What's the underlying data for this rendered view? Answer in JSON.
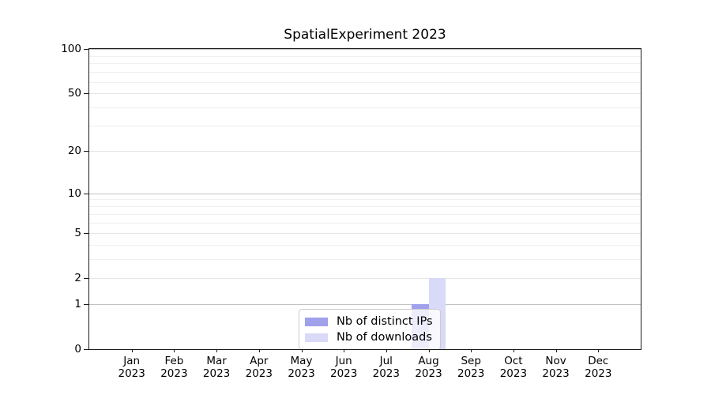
{
  "title": "SpatialExperiment 2023",
  "colors": {
    "distinct_ips_bar": "#a0a0eb",
    "downloads_bar": "#d9d9f8",
    "grid_major": "#c2c2c2",
    "grid_mid": "#e5e5e5",
    "grid_minor": "#f0f0f0",
    "axis": "#1a1a1a",
    "background": "#ffffff"
  },
  "legend": {
    "items": [
      {
        "label": "Nb of distinct IPs",
        "color": "#a0a0eb"
      },
      {
        "label": "Nb of downloads",
        "color": "#d9d9f8"
      }
    ]
  },
  "x_axis": {
    "months": [
      {
        "month": "Jan",
        "year": "2023"
      },
      {
        "month": "Feb",
        "year": "2023"
      },
      {
        "month": "Mar",
        "year": "2023"
      },
      {
        "month": "Apr",
        "year": "2023"
      },
      {
        "month": "May",
        "year": "2023"
      },
      {
        "month": "Jun",
        "year": "2023"
      },
      {
        "month": "Jul",
        "year": "2023"
      },
      {
        "month": "Aug",
        "year": "2023"
      },
      {
        "month": "Sep",
        "year": "2023"
      },
      {
        "month": "Oct",
        "year": "2023"
      },
      {
        "month": "Nov",
        "year": "2023"
      },
      {
        "month": "Dec",
        "year": "2023"
      }
    ]
  },
  "y_axis": {
    "tick_labels": [
      "0",
      "1",
      "2",
      "5",
      "10",
      "20",
      "50",
      "100"
    ]
  },
  "chart_data": {
    "type": "bar",
    "title": "SpatialExperiment 2023",
    "categories": [
      "Jan 2023",
      "Feb 2023",
      "Mar 2023",
      "Apr 2023",
      "May 2023",
      "Jun 2023",
      "Jul 2023",
      "Aug 2023",
      "Sep 2023",
      "Oct 2023",
      "Nov 2023",
      "Dec 2023"
    ],
    "series": [
      {
        "name": "Nb of distinct IPs",
        "color": "#a0a0eb",
        "values": [
          0,
          0,
          0,
          0,
          0,
          0,
          0,
          1,
          0,
          0,
          0,
          0
        ]
      },
      {
        "name": "Nb of downloads",
        "color": "#d9d9f8",
        "values": [
          0,
          0,
          0,
          0,
          0,
          0,
          0,
          2,
          0,
          0,
          0,
          0
        ]
      }
    ],
    "xlabel": "",
    "ylabel": "",
    "y_scale": "log1p",
    "y_ticks": [
      0,
      1,
      2,
      5,
      10,
      20,
      50,
      100
    ],
    "y_major_gridlines": [
      1,
      10,
      100
    ],
    "y_mid_gridlines": [
      2,
      5,
      20,
      50
    ],
    "y_minor_gridlines": [
      3,
      4,
      6,
      7,
      8,
      9,
      30,
      40,
      60,
      70,
      80,
      90
    ],
    "ylim": [
      0,
      101
    ],
    "grid": true,
    "legend_position": "inside lower center"
  }
}
